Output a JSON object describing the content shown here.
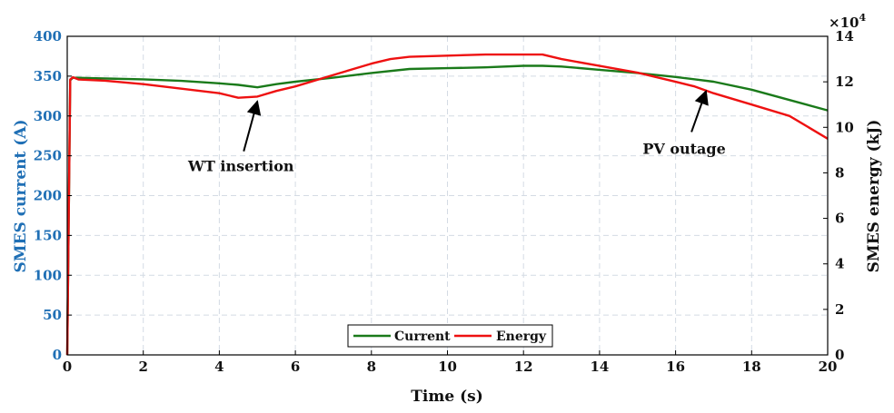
{
  "chart_data": {
    "type": "line",
    "xlabel": "Time (s)",
    "ylabel": "SMES current (A)",
    "ylabel_right": "SMES energy (kJ)",
    "right_exponent": "×10",
    "right_exponent_power": "4",
    "xlim": [
      0,
      20
    ],
    "ylim": [
      0,
      400
    ],
    "ylim_right": [
      0,
      14
    ],
    "x_ticks": [
      0,
      2,
      4,
      6,
      8,
      10,
      12,
      14,
      16,
      18,
      20
    ],
    "y_ticks_left": [
      0,
      50,
      100,
      150,
      200,
      250,
      300,
      350,
      400
    ],
    "y_ticks_right": [
      0,
      2,
      4,
      6,
      8,
      10,
      12,
      14
    ],
    "grid": true,
    "legend_position": "bottom-center",
    "series": [
      {
        "name": "Current",
        "axis": "left",
        "color": "#1a7a1a",
        "x": [
          0,
          0.08,
          0.15,
          1,
          2,
          3,
          4,
          4.5,
          5,
          5.5,
          6,
          7,
          8,
          9,
          10,
          11,
          12,
          12.5,
          13,
          14,
          15,
          16,
          17,
          18,
          19,
          20
        ],
        "y": [
          0,
          345,
          348,
          347,
          346,
          344,
          341,
          339,
          336,
          340,
          343,
          348,
          354,
          359,
          360,
          361,
          363,
          363,
          362,
          358,
          354,
          349,
          343,
          333,
          320,
          307
        ]
      },
      {
        "name": "Energy",
        "axis": "right",
        "color": "#ee1111",
        "x": [
          0,
          0.08,
          0.15,
          0.3,
          1,
          2,
          3,
          4,
          4.5,
          5,
          5.5,
          6,
          7,
          8,
          8.5,
          9,
          10,
          11,
          12,
          12.5,
          13,
          14,
          15,
          16,
          16.5,
          17,
          18,
          19,
          20
        ],
        "y": [
          0,
          12.1,
          12.2,
          12.1,
          12.05,
          11.9,
          11.7,
          11.5,
          11.3,
          11.35,
          11.6,
          11.8,
          12.3,
          12.8,
          13,
          13.1,
          13.15,
          13.2,
          13.2,
          13.2,
          13.0,
          12.7,
          12.4,
          12.0,
          11.8,
          11.5,
          11.0,
          10.5,
          9.5
        ]
      }
    ],
    "annotations": [
      {
        "text": "WT insertion",
        "x": 5.0,
        "y_right": 11.3
      },
      {
        "text": "PV outage",
        "x": 16.8,
        "y_right": 11.75
      }
    ]
  }
}
